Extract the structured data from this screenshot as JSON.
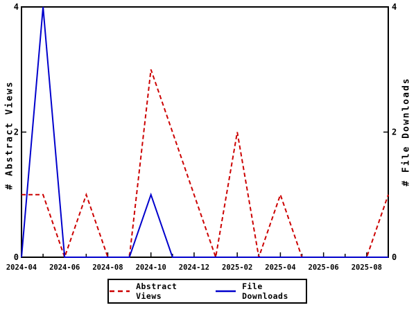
{
  "chart_data": {
    "type": "line",
    "title": "",
    "x": [
      "2024-04",
      "2024-05",
      "2024-06",
      "2024-07",
      "2024-08",
      "2024-09",
      "2024-10",
      "2024-11",
      "2024-12",
      "2025-01",
      "2025-02",
      "2025-03",
      "2025-04",
      "2025-05",
      "2025-06",
      "2025-07",
      "2025-08",
      "2025-09"
    ],
    "xtick_label_every": 2,
    "xtick_labels": [
      "2024-04",
      "2024-06",
      "2024-08",
      "2024-10",
      "2024-12",
      "2025-02",
      "2025-04",
      "2025-06",
      "2025-08"
    ],
    "ylim": [
      0,
      4
    ],
    "yticks": [
      0,
      2,
      4
    ],
    "ylabel_left": "# Abstract Views",
    "ylabel_right": "# File Downloads",
    "grid": false,
    "frame": true,
    "legend_position": "bottom-center",
    "axis_color": "#000000",
    "background_color": "#ffffff",
    "series": [
      {
        "name": "Abstract Views",
        "axis": "left",
        "color": "#cc0000",
        "style": "dashed",
        "dash": "6,4",
        "values": [
          1,
          1,
          0,
          1,
          0,
          0,
          3,
          2,
          1,
          0,
          2,
          0,
          1,
          0,
          0,
          0,
          0,
          1
        ]
      },
      {
        "name": "File Downloads",
        "axis": "right",
        "color": "#0000cc",
        "style": "solid",
        "dash": "",
        "values": [
          0,
          4,
          0,
          0,
          0,
          0,
          1,
          0,
          0,
          0,
          0,
          0,
          0,
          0,
          0,
          0,
          0,
          0
        ]
      }
    ]
  }
}
